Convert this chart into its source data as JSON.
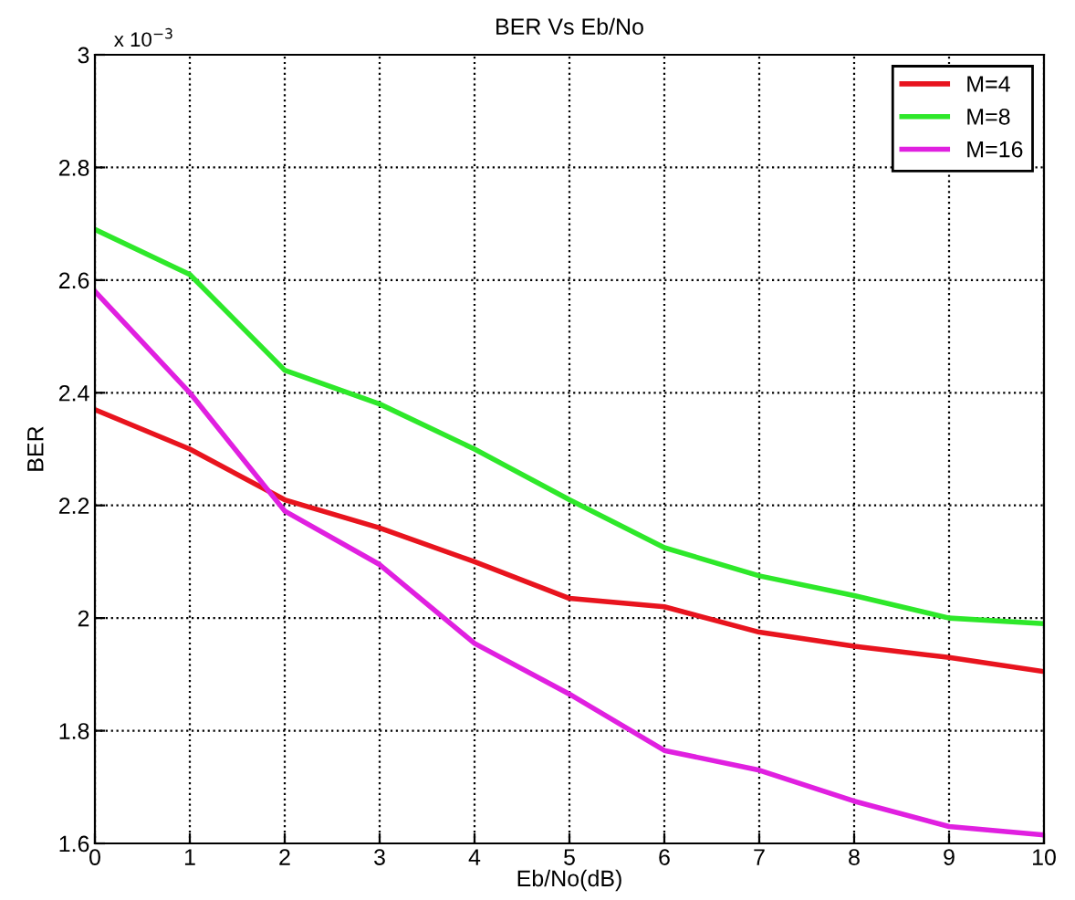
{
  "chart_data": {
    "type": "line",
    "title": "BER Vs Eb/No",
    "xlabel": "Eb/No(dB)",
    "ylabel": "BER",
    "annotations": [
      "x 10$^{−3}$"
    ],
    "x": [
      0,
      1,
      2,
      3,
      4,
      5,
      6,
      7,
      8,
      9,
      10
    ],
    "series": [
      {
        "name": "M=4",
        "color": "#e8141e",
        "values": [
          2.37,
          2.3,
          2.21,
          2.16,
          2.1,
          2.035,
          2.02,
          1.975,
          1.95,
          1.93,
          1.905
        ]
      },
      {
        "name": "M=8",
        "color": "#2ee82a",
        "values": [
          2.69,
          2.61,
          2.44,
          2.38,
          2.3,
          2.21,
          2.125,
          2.075,
          2.04,
          2.0,
          1.99
        ]
      },
      {
        "name": "M=16",
        "color": "#e020e0",
        "values": [
          2.58,
          2.4,
          2.19,
          2.095,
          1.955,
          1.865,
          1.765,
          1.73,
          1.675,
          1.63,
          1.615
        ]
      }
    ],
    "xlim": [
      0,
      10
    ],
    "xticks": [
      0,
      1,
      2,
      3,
      4,
      5,
      6,
      7,
      8,
      9,
      10
    ],
    "ylim": [
      1.6,
      3
    ],
    "yticks": [
      1.6,
      1.8,
      2,
      2.2,
      2.4,
      2.6,
      2.8,
      3
    ],
    "grid": true,
    "legend": "top right",
    "line_style": "solid",
    "marker": "none"
  }
}
